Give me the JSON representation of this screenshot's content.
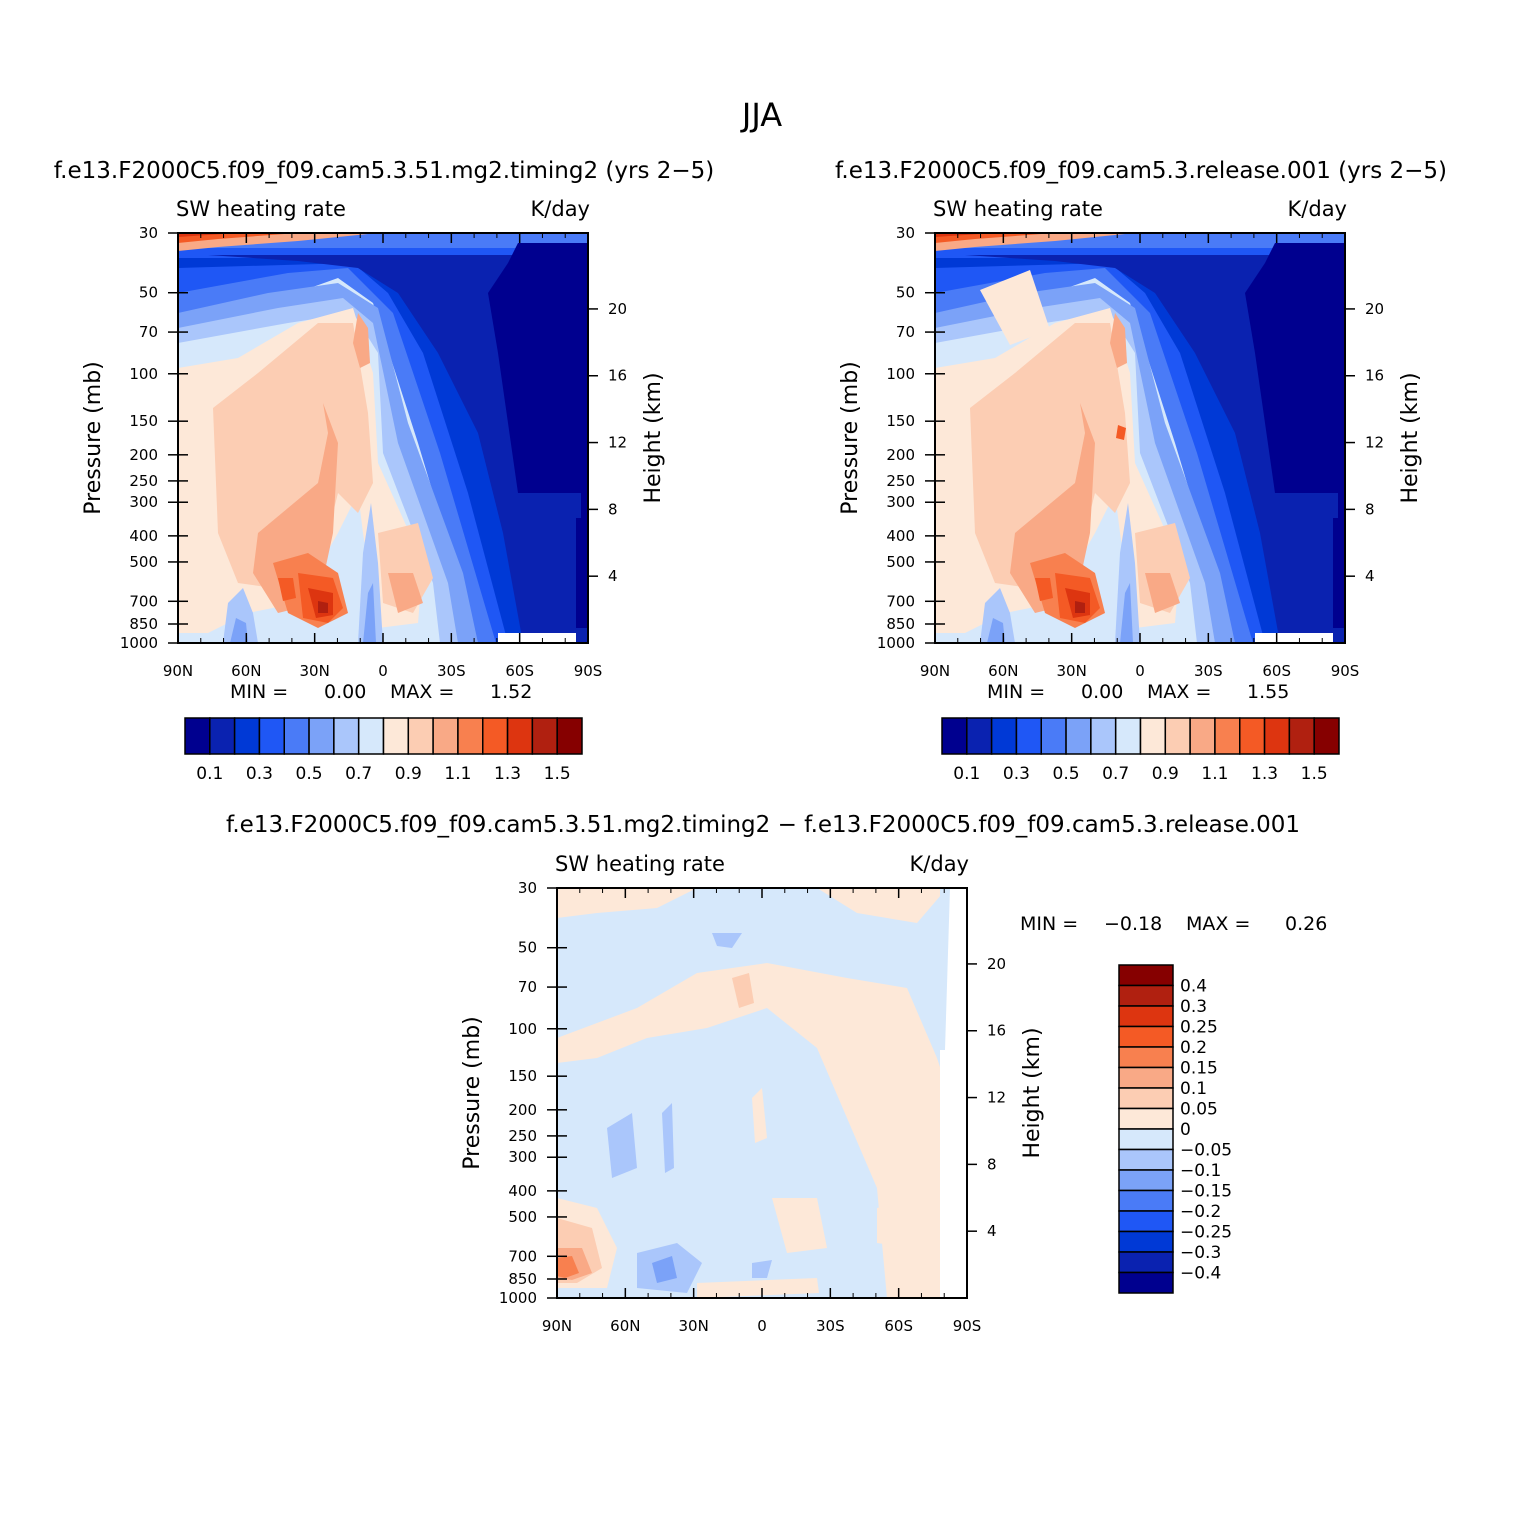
{
  "figure": {
    "title": "JJA"
  },
  "colors": {
    "sw_levels": [
      "#00008f",
      "#0a22b0",
      "#0039d6",
      "#1f57f5",
      "#4a7bf7",
      "#7ba2f8",
      "#aac6fb",
      "#d6e8fb",
      "#fde8d8",
      "#fccdb3",
      "#f9a986",
      "#f8804f",
      "#f45a25",
      "#dd3510",
      "#b02010",
      "#860000"
    ],
    "diff_levels": [
      "#00008f",
      "#0a22b0",
      "#0039d6",
      "#1f57f5",
      "#4a7bf7",
      "#7ba2f8",
      "#aac6fb",
      "#d6e8fb",
      "#fde8d8",
      "#fccdb3",
      "#f9a986",
      "#f8804f",
      "#f45a25",
      "#dd3510",
      "#b02010",
      "#860000"
    ]
  },
  "chart_data": [
    {
      "type": "heatmap",
      "case": "f.e13.F2000C5.f09_f09.cam5.3.51.mg2.timing2 (yrs 2−5)",
      "variable": "SW heating rate",
      "units": "K/day",
      "ylabel": "Pressure (mb)",
      "ylabel_right": "Height (km)",
      "x_ticks": [
        "90N",
        "60N",
        "30N",
        "0",
        "30S",
        "60S",
        "90S"
      ],
      "y_ticks": [
        "30",
        "50",
        "70",
        "100",
        "150",
        "200",
        "250",
        "300",
        "400",
        "500",
        "700",
        "850",
        "1000"
      ],
      "y2_ticks": [
        "20",
        "16",
        "12",
        "8",
        "4"
      ],
      "min_label": "MIN =",
      "min_value": "0.00",
      "max_label": "MAX =",
      "max_value": "1.52",
      "colorbar_labels": [
        "0.1",
        "0.3",
        "0.5",
        "0.7",
        "0.9",
        "1.1",
        "1.3",
        "1.5"
      ]
    },
    {
      "type": "heatmap",
      "case": "f.e13.F2000C5.f09_f09.cam5.3.release.001 (yrs 2−5)",
      "variable": "SW heating rate",
      "units": "K/day",
      "ylabel": "Pressure (mb)",
      "ylabel_right": "Height (km)",
      "x_ticks": [
        "90N",
        "60N",
        "30N",
        "0",
        "30S",
        "60S",
        "90S"
      ],
      "y_ticks": [
        "30",
        "50",
        "70",
        "100",
        "150",
        "200",
        "250",
        "300",
        "400",
        "500",
        "700",
        "850",
        "1000"
      ],
      "y2_ticks": [
        "20",
        "16",
        "12",
        "8",
        "4"
      ],
      "min_label": "MIN =",
      "min_value": "0.00",
      "max_label": "MAX =",
      "max_value": "1.55",
      "colorbar_labels": [
        "0.1",
        "0.3",
        "0.5",
        "0.7",
        "0.9",
        "1.1",
        "1.3",
        "1.5"
      ]
    },
    {
      "type": "heatmap",
      "case": "f.e13.F2000C5.f09_f09.cam5.3.51.mg2.timing2 − f.e13.F2000C5.f09_f09.cam5.3.release.001",
      "variable": "SW heating rate",
      "units": "K/day",
      "ylabel": "Pressure (mb)",
      "ylabel_right": "Height (km)",
      "x_ticks": [
        "90N",
        "60N",
        "30N",
        "0",
        "30S",
        "60S",
        "90S"
      ],
      "y_ticks": [
        "30",
        "50",
        "70",
        "100",
        "150",
        "200",
        "250",
        "300",
        "400",
        "500",
        "700",
        "850",
        "1000"
      ],
      "y2_ticks": [
        "20",
        "16",
        "12",
        "8",
        "4"
      ],
      "min_label": "MIN =",
      "min_value": "−0.18",
      "max_label": "MAX =",
      "max_value": "0.26",
      "colorbar_labels": [
        "0.4",
        "0.3",
        "0.25",
        "0.2",
        "0.15",
        "0.1",
        "0.05",
        "0",
        "−0.05",
        "−0.1",
        "−0.15",
        "−0.2",
        "−0.25",
        "−0.3",
        "−0.4"
      ]
    }
  ]
}
